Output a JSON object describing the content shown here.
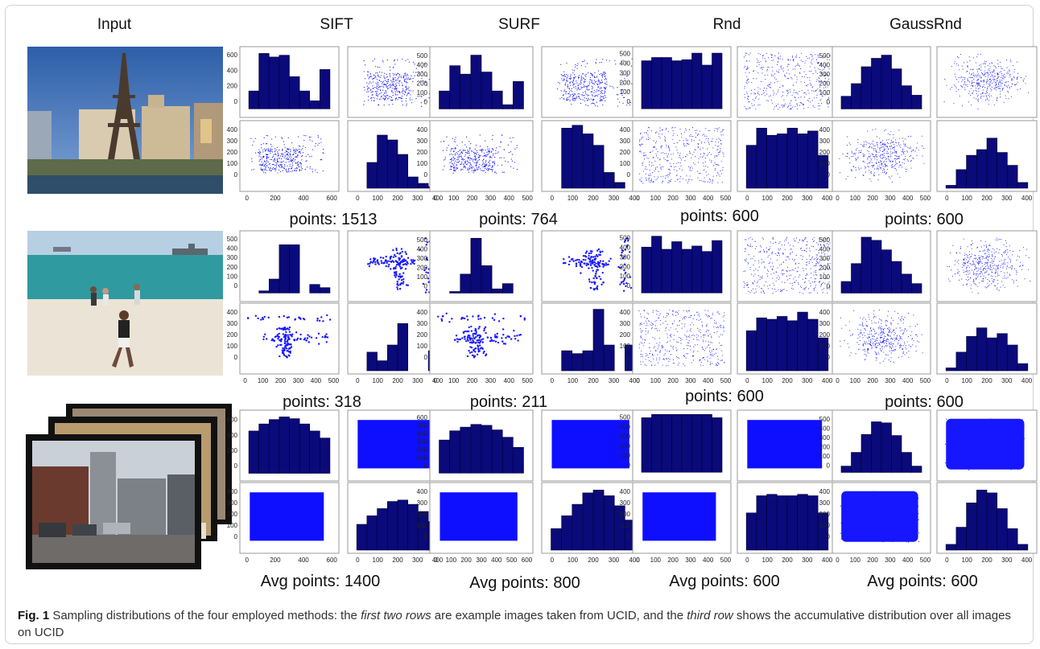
{
  "figure": {
    "column_headers": [
      "Input",
      "SIFT",
      "SURF",
      "Rnd",
      "GaussRnd"
    ],
    "rows": [
      {
        "counts": [
          "points: 1513",
          "points: 764",
          "points: 600",
          "points: 600"
        ]
      },
      {
        "counts": [
          "points: 318",
          "points: 211",
          "points: 600",
          "points: 600"
        ]
      },
      {
        "counts": [
          "Avg points: 1400",
          "Avg points: 800",
          "Avg points: 600",
          "Avg points: 600"
        ]
      }
    ],
    "caption": {
      "label": "Fig. 1",
      "text_1": " Sampling distributions of the four employed methods: the ",
      "em_1": "first two rows",
      "text_2": " are example images taken from UCID, and the ",
      "em_2": "third row",
      "text_3": " shows the accumulative distribution over all images on UCID"
    }
  },
  "chart_data": [
    {
      "type": "bar",
      "method": "SIFT",
      "row": 1,
      "panel": "x-histogram",
      "values": [
        200,
        620,
        580,
        600,
        360,
        200,
        90,
        440
      ],
      "yticks": [
        0,
        200,
        400,
        600
      ],
      "ylim": [
        -60,
        660
      ]
    },
    {
      "type": "scatter",
      "method": "SIFT",
      "row": 1,
      "panel": "xy-scatter",
      "pattern": "features",
      "xlim": [
        0,
        600
      ],
      "ylim": [
        0,
        400
      ]
    },
    {
      "type": "scatter",
      "method": "SIFT",
      "row": 1,
      "panel": "yx-scatter",
      "pattern": "features",
      "xticks": [
        0,
        200,
        400,
        600
      ],
      "yticks": [
        0,
        100,
        200,
        300,
        400
      ],
      "xlim": [
        -50,
        650
      ],
      "ylim": [
        -50,
        450
      ]
    },
    {
      "type": "bar",
      "method": "SIFT",
      "row": 1,
      "panel": "y-histogram",
      "values": [
        0,
        160,
        330,
        300,
        210,
        70,
        30,
        10
      ],
      "xticks": [
        0,
        100,
        200,
        300,
        400
      ],
      "xlim": [
        -50,
        450
      ],
      "ylim": [
        0,
        400
      ]
    },
    {
      "type": "bar",
      "method": "SURF",
      "row": 1,
      "panel": "x-histogram",
      "values": [
        170,
        410,
        330,
        510,
        350,
        170,
        40,
        260
      ],
      "yticks": [
        0,
        100,
        200,
        300,
        400,
        500
      ],
      "ylim": [
        -50,
        560
      ]
    },
    {
      "type": "scatter",
      "method": "SURF",
      "row": 1,
      "panel": "xy-scatter",
      "pattern": "features",
      "xlim": [
        0,
        600
      ],
      "ylim": [
        0,
        400
      ]
    },
    {
      "type": "scatter",
      "method": "SURF",
      "row": 1,
      "panel": "yx-scatter",
      "pattern": "features",
      "xticks": [
        0,
        100,
        200,
        300,
        400,
        500
      ],
      "yticks": [
        0,
        100,
        200,
        300,
        400
      ],
      "xlim": [
        -30,
        530
      ],
      "ylim": [
        -50,
        450
      ]
    },
    {
      "type": "bar",
      "method": "SURF",
      "row": 1,
      "panel": "y-histogram",
      "values": [
        0,
        420,
        440,
        380,
        300,
        110,
        40,
        0
      ],
      "xticks": [
        0,
        100,
        200,
        300,
        400
      ],
      "xlim": [
        -50,
        450
      ],
      "ylim": [
        0,
        450
      ]
    },
    {
      "type": "bar",
      "method": "Rnd",
      "row": 1,
      "panel": "x-histogram",
      "values": [
        440,
        470,
        470,
        440,
        450,
        510,
        400,
        510
      ],
      "yticks": [
        0,
        100,
        200,
        300,
        400,
        500
      ],
      "ylim": [
        -50,
        540
      ]
    },
    {
      "type": "scatter",
      "method": "Rnd",
      "row": 1,
      "panel": "xy-scatter",
      "pattern": "uniform",
      "xlim": [
        0,
        600
      ],
      "ylim": [
        0,
        400
      ]
    },
    {
      "type": "scatter",
      "method": "Rnd",
      "row": 1,
      "panel": "yx-scatter",
      "pattern": "uniform",
      "xticks": [
        0,
        100,
        200,
        300,
        400,
        500
      ],
      "yticks": [
        0,
        100,
        200,
        300,
        400
      ],
      "xlim": [
        -30,
        530
      ],
      "ylim": [
        -50,
        450
      ]
    },
    {
      "type": "bar",
      "method": "Rnd",
      "row": 1,
      "panel": "y-histogram",
      "values": [
        300,
        420,
        370,
        380,
        420,
        380,
        400,
        230
      ],
      "xticks": [
        0,
        100,
        200,
        300,
        400
      ],
      "xlim": [
        -50,
        450
      ],
      "ylim": [
        0,
        450
      ]
    },
    {
      "type": "bar",
      "method": "GaussRnd",
      "row": 1,
      "panel": "x-histogram",
      "values": [
        120,
        240,
        400,
        480,
        510,
        380,
        220,
        130
      ],
      "yticks": [
        0,
        100,
        200,
        300,
        400,
        500
      ],
      "ylim": [
        -50,
        560
      ]
    },
    {
      "type": "scatter",
      "method": "GaussRnd",
      "row": 1,
      "panel": "xy-scatter",
      "pattern": "gaussian",
      "xlim": [
        0,
        600
      ],
      "ylim": [
        0,
        400
      ]
    },
    {
      "type": "scatter",
      "method": "GaussRnd",
      "row": 1,
      "panel": "yx-scatter",
      "pattern": "gaussian",
      "xticks": [
        0,
        100,
        200,
        300,
        400,
        500
      ],
      "yticks": [
        0,
        100,
        200,
        300,
        400
      ],
      "xlim": [
        -30,
        530
      ],
      "ylim": [
        -50,
        450
      ]
    },
    {
      "type": "bar",
      "method": "GaussRnd",
      "row": 1,
      "panel": "y-histogram",
      "values": [
        20,
        130,
        230,
        270,
        350,
        250,
        160,
        40
      ],
      "xticks": [
        0,
        100,
        200,
        300,
        400
      ],
      "xlim": [
        -50,
        450
      ],
      "ylim": [
        0,
        450
      ]
    },
    {
      "type": "bar",
      "method": "SIFT",
      "row": 2,
      "panel": "x-histogram",
      "values": [
        0,
        20,
        130,
        450,
        450,
        0,
        80,
        50
      ],
      "yticks": [
        0,
        100,
        200,
        300,
        400,
        500
      ],
      "ylim": [
        -50,
        550
      ]
    },
    {
      "type": "scatter",
      "method": "SIFT",
      "row": 2,
      "panel": "xy-scatter",
      "pattern": "cross",
      "xlim": [
        0,
        600
      ],
      "ylim": [
        0,
        400
      ]
    },
    {
      "type": "scatter",
      "method": "SIFT",
      "row": 2,
      "panel": "yx-scatter",
      "pattern": "cross",
      "xticks": [
        0,
        100,
        200,
        300,
        400,
        500
      ],
      "yticks": [
        0,
        100,
        200,
        300,
        400
      ],
      "xlim": [
        -30,
        530
      ],
      "ylim": [
        -50,
        450
      ]
    },
    {
      "type": "bar",
      "method": "SIFT",
      "row": 2,
      "panel": "y-histogram",
      "values": [
        0,
        130,
        70,
        180,
        330,
        0,
        0,
        140
      ],
      "xticks": [
        0,
        100,
        200,
        300,
        400
      ],
      "xlim": [
        -50,
        450
      ],
      "ylim": [
        0,
        450
      ]
    },
    {
      "type": "bar",
      "method": "SURF",
      "row": 2,
      "panel": "x-histogram",
      "values": [
        0,
        15,
        180,
        520,
        260,
        40,
        90,
        0
      ],
      "yticks": [
        0,
        100,
        200,
        300,
        400,
        500
      ],
      "ylim": [
        -50,
        560
      ]
    },
    {
      "type": "scatter",
      "method": "SURF",
      "row": 2,
      "panel": "xy-scatter",
      "pattern": "cross",
      "xlim": [
        0,
        600
      ],
      "ylim": [
        0,
        400
      ]
    },
    {
      "type": "scatter",
      "method": "SURF",
      "row": 2,
      "panel": "yx-scatter",
      "pattern": "cross",
      "xticks": [
        0,
        100,
        200,
        300,
        400,
        500
      ],
      "yticks": [
        0,
        100,
        200,
        300,
        400
      ],
      "xlim": [
        -30,
        530
      ],
      "ylim": [
        -50,
        450
      ]
    },
    {
      "type": "bar",
      "method": "SURF",
      "row": 2,
      "panel": "y-histogram",
      "values": [
        0,
        140,
        120,
        140,
        430,
        180,
        0,
        180
      ],
      "xticks": [
        0,
        100,
        200,
        300,
        400
      ],
      "xlim": [
        -50,
        450
      ],
      "ylim": [
        0,
        450
      ]
    },
    {
      "type": "bar",
      "method": "Rnd",
      "row": 2,
      "panel": "x-histogram",
      "values": [
        420,
        520,
        400,
        470,
        400,
        430,
        380,
        480
      ],
      "yticks": [
        0,
        100,
        200,
        300,
        400,
        500
      ],
      "ylim": [
        -50,
        540
      ]
    },
    {
      "type": "scatter",
      "method": "Rnd",
      "row": 2,
      "panel": "xy-scatter",
      "pattern": "uniform",
      "xlim": [
        0,
        600
      ],
      "ylim": [
        0,
        400
      ]
    },
    {
      "type": "scatter",
      "method": "Rnd",
      "row": 2,
      "panel": "yx-scatter",
      "pattern": "uniform",
      "xticks": [
        0,
        100,
        200,
        300,
        400,
        500
      ],
      "yticks": [
        0,
        100,
        200,
        300,
        400
      ],
      "xlim": [
        -30,
        530
      ],
      "ylim": [
        -50,
        450
      ]
    },
    {
      "type": "bar",
      "method": "Rnd",
      "row": 2,
      "panel": "y-histogram",
      "values": [
        280,
        370,
        360,
        380,
        350,
        410,
        360,
        230
      ],
      "xticks": [
        0,
        100,
        200,
        300,
        400
      ],
      "xlim": [
        -50,
        450
      ],
      "ylim": [
        0,
        450
      ]
    },
    {
      "type": "bar",
      "method": "GaussRnd",
      "row": 2,
      "panel": "x-histogram",
      "values": [
        110,
        280,
        530,
        500,
        410,
        300,
        180,
        90
      ],
      "yticks": [
        0,
        100,
        200,
        300,
        400,
        500
      ],
      "ylim": [
        -50,
        560
      ]
    },
    {
      "type": "scatter",
      "method": "GaussRnd",
      "row": 2,
      "panel": "xy-scatter",
      "pattern": "gaussian",
      "xlim": [
        0,
        600
      ],
      "ylim": [
        0,
        400
      ]
    },
    {
      "type": "scatter",
      "method": "GaussRnd",
      "row": 2,
      "panel": "yx-scatter",
      "pattern": "gaussian",
      "xticks": [
        0,
        100,
        200,
        300,
        400,
        500
      ],
      "yticks": [
        0,
        100,
        200,
        300,
        400
      ],
      "xlim": [
        -30,
        530
      ],
      "ylim": [
        -50,
        450
      ]
    },
    {
      "type": "bar",
      "method": "GaussRnd",
      "row": 2,
      "panel": "y-histogram",
      "values": [
        20,
        130,
        240,
        300,
        230,
        260,
        180,
        50
      ],
      "xticks": [
        0,
        100,
        200,
        300,
        400
      ],
      "xlim": [
        -50,
        450
      ],
      "ylim": [
        0,
        450
      ]
    },
    {
      "type": "bar",
      "method": "SIFT",
      "row": 3,
      "panel": "x-histogram",
      "values": [
        480,
        560,
        610,
        640,
        620,
        560,
        480,
        400
      ],
      "yticks": [
        0,
        200,
        400,
        600
      ],
      "ylim": [
        -50,
        680
      ]
    },
    {
      "type": "scatter",
      "method": "SIFT",
      "row": 3,
      "panel": "xy-scatter",
      "pattern": "solid",
      "xlim": [
        0,
        600
      ],
      "ylim": [
        0,
        400
      ]
    },
    {
      "type": "scatter",
      "method": "SIFT",
      "row": 3,
      "panel": "yx-scatter",
      "pattern": "solid",
      "xticks": [
        0,
        200,
        400,
        600
      ],
      "yticks": [
        0,
        100,
        200,
        300,
        400
      ],
      "xlim": [
        -50,
        650
      ],
      "ylim": [
        -50,
        450
      ]
    },
    {
      "type": "bar",
      "method": "SIFT",
      "row": 3,
      "panel": "y-histogram",
      "values": [
        180,
        240,
        290,
        340,
        350,
        320,
        270,
        200
      ],
      "xticks": [
        0,
        100,
        200,
        300,
        400
      ],
      "xlim": [
        -50,
        450
      ],
      "ylim": [
        0,
        450
      ]
    },
    {
      "type": "bar",
      "method": "SURF",
      "row": 3,
      "panel": "x-histogram",
      "values": [
        360,
        460,
        500,
        530,
        520,
        470,
        390,
        280
      ],
      "yticks": [
        0,
        100,
        200,
        300,
        400,
        500,
        600
      ],
      "ylim": [
        -50,
        650
      ]
    },
    {
      "type": "scatter",
      "method": "SURF",
      "row": 3,
      "panel": "xy-scatter",
      "pattern": "solid",
      "xlim": [
        0,
        600
      ],
      "ylim": [
        0,
        400
      ]
    },
    {
      "type": "scatter",
      "method": "SURF",
      "row": 3,
      "panel": "yx-scatter",
      "pattern": "solid",
      "xticks": [
        0,
        100,
        200,
        300,
        400,
        500,
        600
      ],
      "yticks": [
        0,
        100,
        200,
        300,
        400
      ],
      "xlim": [
        -40,
        640
      ],
      "ylim": [
        -50,
        450
      ]
    },
    {
      "type": "bar",
      "method": "SURF",
      "row": 3,
      "panel": "y-histogram",
      "values": [
        150,
        240,
        320,
        400,
        420,
        380,
        310,
        210
      ],
      "xticks": [
        0,
        100,
        200,
        300,
        400
      ],
      "xlim": [
        -50,
        450
      ],
      "ylim": [
        0,
        450
      ]
    },
    {
      "type": "bar",
      "method": "Rnd",
      "row": 3,
      "panel": "x-histogram",
      "values": [
        500,
        530,
        530,
        530,
        530,
        530,
        530,
        500
      ],
      "yticks": [
        0,
        100,
        200,
        300,
        400,
        500
      ],
      "ylim": [
        -50,
        540
      ]
    },
    {
      "type": "scatter",
      "method": "Rnd",
      "row": 3,
      "panel": "xy-scatter",
      "pattern": "solid",
      "xlim": [
        0,
        600
      ],
      "ylim": [
        0,
        400
      ]
    },
    {
      "type": "scatter",
      "method": "Rnd",
      "row": 3,
      "panel": "yx-scatter",
      "pattern": "solid",
      "xticks": [
        0,
        100,
        200,
        300,
        400,
        500
      ],
      "yticks": [
        0,
        100,
        200,
        300,
        400
      ],
      "xlim": [
        -30,
        530
      ],
      "ylim": [
        -50,
        450
      ]
    },
    {
      "type": "bar",
      "method": "Rnd",
      "row": 3,
      "panel": "y-histogram",
      "values": [
        260,
        380,
        390,
        380,
        380,
        390,
        380,
        260
      ],
      "xticks": [
        0,
        100,
        200,
        300,
        400
      ],
      "xlim": [
        -50,
        450
      ],
      "ylim": [
        0,
        450
      ]
    },
    {
      "type": "bar",
      "method": "GaussRnd",
      "row": 3,
      "panel": "x-histogram",
      "values": [
        60,
        190,
        360,
        480,
        470,
        350,
        190,
        60
      ],
      "yticks": [
        0,
        100,
        200,
        300,
        400,
        500
      ],
      "ylim": [
        -50,
        560
      ]
    },
    {
      "type": "scatter",
      "method": "GaussRnd",
      "row": 3,
      "panel": "xy-scatter",
      "pattern": "dense",
      "xlim": [
        0,
        600
      ],
      "ylim": [
        0,
        400
      ]
    },
    {
      "type": "scatter",
      "method": "GaussRnd",
      "row": 3,
      "panel": "yx-scatter",
      "pattern": "dense",
      "xticks": [
        0,
        100,
        200,
        300,
        400,
        500
      ],
      "yticks": [
        0,
        100,
        200,
        300,
        400
      ],
      "xlim": [
        -30,
        530
      ],
      "ylim": [
        -50,
        450
      ]
    },
    {
      "type": "bar",
      "method": "GaussRnd",
      "row": 3,
      "panel": "y-histogram",
      "values": [
        40,
        160,
        330,
        420,
        400,
        290,
        150,
        40
      ],
      "xticks": [
        0,
        100,
        200,
        300,
        400
      ],
      "xlim": [
        -50,
        450
      ],
      "ylim": [
        0,
        450
      ]
    }
  ]
}
